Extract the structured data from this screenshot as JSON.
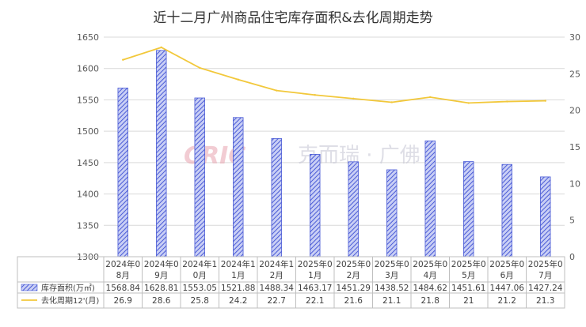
{
  "chart_data": {
    "type": "bar",
    "title": "近十二月广州商品住宅库存面积&去化周期走势",
    "categories": [
      [
        "2024年0",
        "8月"
      ],
      [
        "2024年0",
        "9月"
      ],
      [
        "2024年1",
        "0月"
      ],
      [
        "2024年1",
        "1月"
      ],
      [
        "2024年1",
        "2月"
      ],
      [
        "2025年0",
        "1月"
      ],
      [
        "2025年0",
        "2月"
      ],
      [
        "2025年0",
        "3月"
      ],
      [
        "2025年0",
        "4月"
      ],
      [
        "2025年0",
        "5月"
      ],
      [
        "2025年0",
        "6月"
      ],
      [
        "2025年0",
        "7月"
      ]
    ],
    "series": [
      {
        "name": "库存面积(万㎡)",
        "kind": "bar",
        "axis": "left",
        "color": "#5b6ee1",
        "values": [
          1568.84,
          1628.81,
          1553.05,
          1521.88,
          1488.34,
          1463.17,
          1451.29,
          1438.52,
          1484.62,
          1451.61,
          1447.06,
          1427.24
        ],
        "labels": [
          "1568.84",
          "1628.81",
          "1553.05",
          "1521.88",
          "1488.34",
          "1463.17",
          "1451.29",
          "1438.52",
          "1484.62",
          "1451.61",
          "1447.06",
          "1427.24"
        ]
      },
      {
        "name": "去化周期12'(月)",
        "kind": "line",
        "axis": "right",
        "color": "#f2c83b",
        "values": [
          26.9,
          28.6,
          25.8,
          24.2,
          22.7,
          22.1,
          21.6,
          21.1,
          21.8,
          21,
          21.2,
          21.3
        ],
        "labels": [
          "26.9",
          "28.6",
          "25.8",
          "24.2",
          "22.7",
          "22.1",
          "21.6",
          "21.1",
          "21.8",
          "21",
          "21.2",
          "21.3"
        ]
      }
    ],
    "ylim": [
      1300,
      1650
    ],
    "yticks": [
      1300,
      1350,
      1400,
      1450,
      1500,
      1550,
      1600,
      1650
    ],
    "y2lim": [
      0,
      30
    ],
    "y2ticks": [
      0,
      5,
      10,
      15,
      20,
      25,
      30
    ],
    "grid": true,
    "legend": "data-table"
  },
  "watermark": {
    "logo": "CRIC",
    "text": "克而瑞 · 广佛"
  }
}
